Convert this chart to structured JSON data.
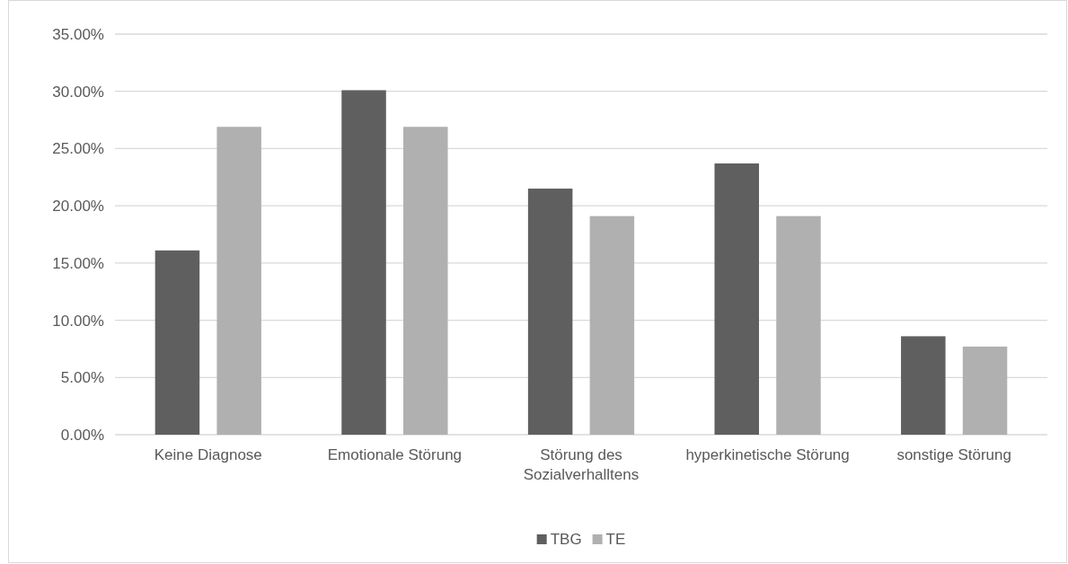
{
  "chart_data": {
    "type": "bar",
    "categories": [
      "Keine Diagnose",
      "Emotionale Störung",
      "Störung des Sozialverhalltens",
      "hyperkinetische Störung",
      "sonstige Störung"
    ],
    "series": [
      {
        "name": "TBG",
        "color": "#5f5f5f",
        "values": [
          16.1,
          30.1,
          21.5,
          23.7,
          8.6
        ]
      },
      {
        "name": "TE",
        "color": "#b0b0b0",
        "values": [
          26.9,
          26.9,
          19.1,
          19.1,
          7.7
        ]
      }
    ],
    "ylim": [
      0,
      35
    ],
    "yticks": [
      {
        "value": 0,
        "label": "0.00%"
      },
      {
        "value": 5,
        "label": "5.00%"
      },
      {
        "value": 10,
        "label": "10.00%"
      },
      {
        "value": 15,
        "label": "15.00%"
      },
      {
        "value": 20,
        "label": "20.00%"
      },
      {
        "value": 25,
        "label": "25.00%"
      },
      {
        "value": 30,
        "label": "30.00%"
      },
      {
        "value": 35,
        "label": "35.00%"
      }
    ],
    "grid": "y",
    "legend": "bottom"
  }
}
